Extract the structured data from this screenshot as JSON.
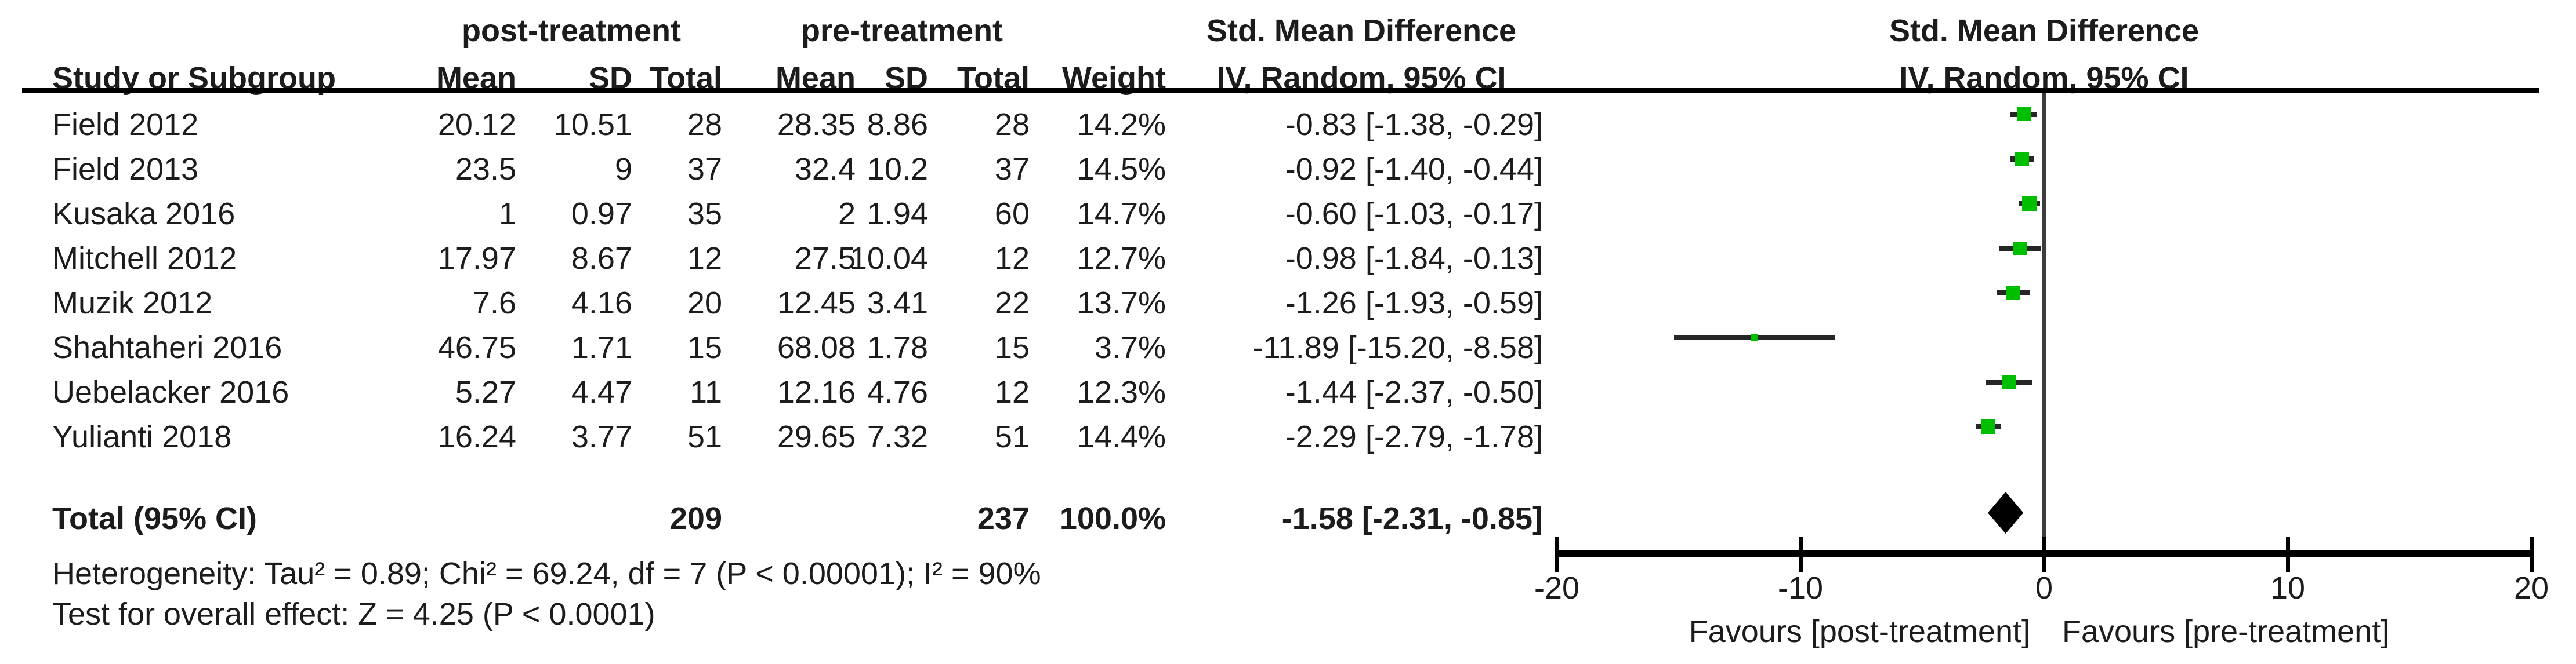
{
  "figure": {
    "effect_title": "Std. Mean Difference",
    "effect_subtitle": "IV, Random, 95% CI",
    "columns": {
      "study": "Study or Subgroup",
      "mean": "Mean",
      "sd": "SD",
      "total": "Total",
      "weight": "Weight"
    }
  },
  "chart_data": {
    "type": "scatter",
    "variant": "forest-plot-random-effects",
    "title": "Std. Mean Difference",
    "subtitle": "IV, Random, 95% CI",
    "groups": [
      "post-treatment",
      "pre-treatment"
    ],
    "xlim": [
      -20,
      20
    ],
    "xticks": [
      -20,
      -10,
      0,
      10,
      20
    ],
    "x_axis_left_label": "Favours [post-treatment]",
    "x_axis_right_label": "Favours [pre-treatment]",
    "grid": false,
    "marker_color": "#00be00",
    "ci_line_color": "#262626",
    "diamond_color": "#000000",
    "studies": [
      {
        "label": "Field 2012",
        "post": {
          "mean": 20.12,
          "sd": 10.51,
          "total": 28
        },
        "pre": {
          "mean": 28.35,
          "sd": 8.86,
          "total": 28
        },
        "weight": "14.2%",
        "smd": -0.83,
        "ci_low": -1.38,
        "ci_high": -0.29,
        "ci_text": "-0.83 [-1.38, -0.29]"
      },
      {
        "label": "Field 2013",
        "post": {
          "mean": 23.5,
          "sd": 9,
          "total": 37
        },
        "pre": {
          "mean": 32.4,
          "sd": 10.2,
          "total": 37
        },
        "weight": "14.5%",
        "smd": -0.92,
        "ci_low": -1.4,
        "ci_high": -0.44,
        "ci_text": "-0.92 [-1.40, -0.44]"
      },
      {
        "label": "Kusaka 2016",
        "post": {
          "mean": 1,
          "sd": 0.97,
          "total": 35
        },
        "pre": {
          "mean": 2,
          "sd": 1.94,
          "total": 60
        },
        "weight": "14.7%",
        "smd": -0.6,
        "ci_low": -1.03,
        "ci_high": -0.17,
        "ci_text": "-0.60 [-1.03, -0.17]"
      },
      {
        "label": "Mitchell 2012",
        "post": {
          "mean": 17.97,
          "sd": 8.67,
          "total": 12
        },
        "pre": {
          "mean": 27.5,
          "sd": 10.04,
          "total": 12
        },
        "weight": "12.7%",
        "smd": -0.98,
        "ci_low": -1.84,
        "ci_high": -0.13,
        "ci_text": "-0.98 [-1.84, -0.13]"
      },
      {
        "label": "Muzik 2012",
        "post": {
          "mean": 7.6,
          "sd": 4.16,
          "total": 20
        },
        "pre": {
          "mean": 12.45,
          "sd": 3.41,
          "total": 22
        },
        "weight": "13.7%",
        "smd": -1.26,
        "ci_low": -1.93,
        "ci_high": -0.59,
        "ci_text": "-1.26 [-1.93, -0.59]"
      },
      {
        "label": "Shahtaheri 2016",
        "post": {
          "mean": 46.75,
          "sd": 1.71,
          "total": 15
        },
        "pre": {
          "mean": 68.08,
          "sd": 1.78,
          "total": 15
        },
        "weight": "3.7%",
        "smd": -11.89,
        "ci_low": -15.2,
        "ci_high": -8.58,
        "ci_text": "-11.89 [-15.20, -8.58]"
      },
      {
        "label": "Uebelacker 2016",
        "post": {
          "mean": 5.27,
          "sd": 4.47,
          "total": 11
        },
        "pre": {
          "mean": 12.16,
          "sd": 4.76,
          "total": 12
        },
        "weight": "12.3%",
        "smd": -1.44,
        "ci_low": -2.37,
        "ci_high": -0.5,
        "ci_text": "-1.44 [-2.37, -0.50]"
      },
      {
        "label": "Yulianti 2018",
        "post": {
          "mean": 16.24,
          "sd": 3.77,
          "total": 51
        },
        "pre": {
          "mean": 29.65,
          "sd": 7.32,
          "total": 51
        },
        "weight": "14.4%",
        "smd": -2.29,
        "ci_low": -2.79,
        "ci_high": -1.78,
        "ci_text": "-2.29 [-2.79, -1.78]"
      }
    ],
    "total": {
      "label": "Total (95% CI)",
      "post_total": 209,
      "pre_total": 237,
      "weight": "100.0%",
      "smd": -1.58,
      "ci_low": -2.31,
      "ci_high": -0.85,
      "ci_text": "-1.58 [-2.31, -0.85]"
    },
    "heterogeneity": "Heterogeneity: Tau² = 0.89; Chi² = 69.24, df = 7 (P < 0.00001); I² = 90%",
    "overall_effect": "Test for overall effect: Z = 4.25 (P < 0.0001)"
  }
}
